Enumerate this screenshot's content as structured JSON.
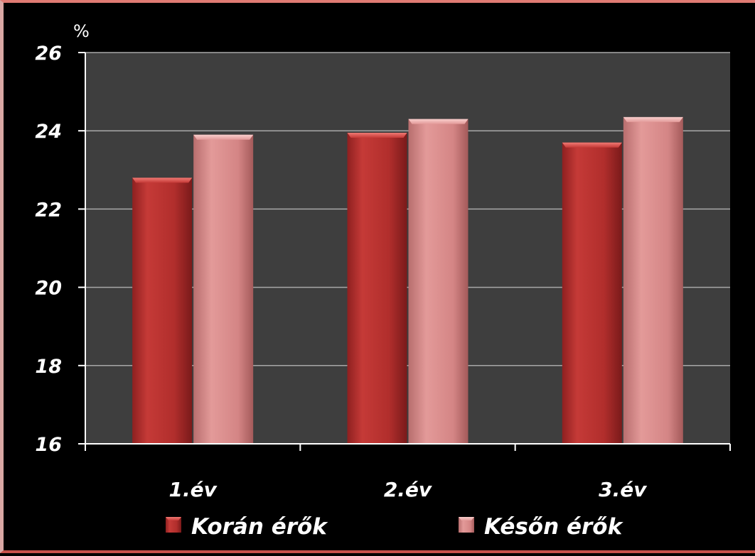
{
  "chart_data": {
    "type": "bar",
    "title": "",
    "ylabel": "%",
    "xlabel": "",
    "categories": [
      "1.év",
      "2.év",
      "3.év"
    ],
    "series": [
      {
        "name": "Korán érők",
        "values": [
          22.8,
          23.95,
          23.7
        ]
      },
      {
        "name": "Későn érők",
        "values": [
          23.9,
          24.3,
          24.35
        ]
      }
    ],
    "ylim": [
      16,
      26
    ],
    "yticks": [
      16,
      18,
      20,
      22,
      24,
      26
    ],
    "grid": true,
    "legend": "bottom",
    "colors": {
      "background": "#000000",
      "plot_area": "#3e3e3e",
      "gridline": "#a8a8a8",
      "series": [
        "#c73a38",
        "#dc8d8d"
      ]
    }
  }
}
